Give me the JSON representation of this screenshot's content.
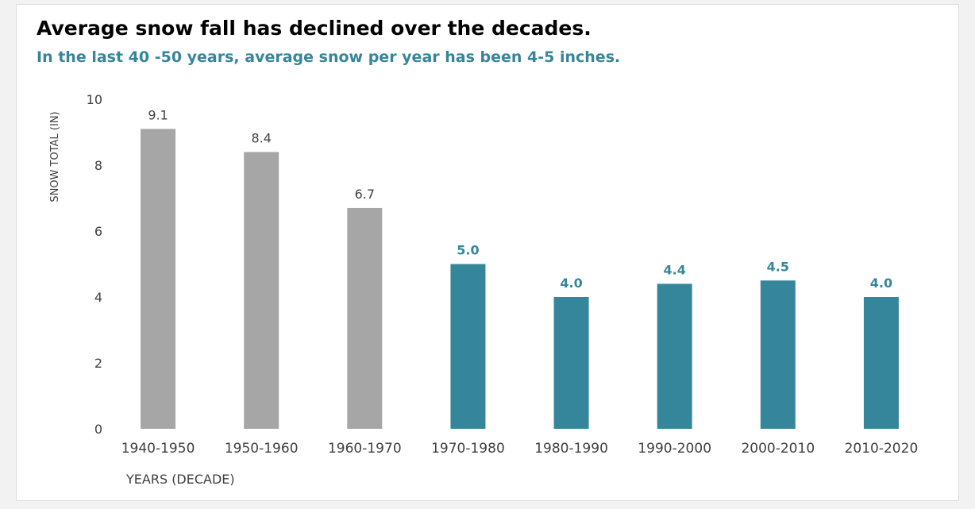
{
  "chart_data": {
    "type": "bar",
    "title": "Average snow fall has declined over the decades.",
    "subtitle": "In the last 40 -50 years, average snow per year has been 4-5 inches.",
    "xlabel": "YEARS (DECADE)",
    "ylabel": "SNOW TOTAL (IN)",
    "ylim": [
      0,
      10
    ],
    "yticks": [
      "0",
      "2",
      "4",
      "6",
      "8",
      "10"
    ],
    "grid": false,
    "categories": [
      "1940-1950",
      "1950-1960",
      "1960-1970",
      "1970-1980",
      "1980-1990",
      "1990-2000",
      "2000-2010",
      "2010-2020"
    ],
    "values": [
      9.1,
      8.4,
      6.7,
      5.0,
      4.0,
      4.4,
      4.5,
      4.0
    ],
    "data_labels": [
      "9.1",
      "8.4",
      "6.7",
      "5.0",
      "4.0",
      "4.4",
      "4.5",
      "4.0"
    ],
    "colors": {
      "older": "#a6a6a6",
      "recent": "#36869b",
      "subtitle": "#36869b",
      "older_label": "#404040"
    },
    "highlight_from_index": 3
  }
}
